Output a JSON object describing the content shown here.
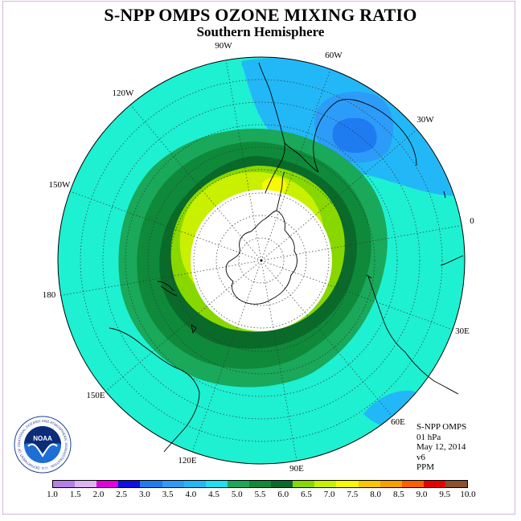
{
  "title": "S-NPP OMPS OZONE MIXING RATIO",
  "subtitle": "Southern Hemisphere",
  "longitude_labels": [
    "90W",
    "60W",
    "30W",
    "0",
    "30E",
    "60E",
    "90E",
    "120E",
    "150E",
    "180",
    "150W",
    "120W"
  ],
  "info": {
    "instrument": "S-NPP OMPS",
    "level": "01 hPa",
    "date": "May 12, 2014",
    "version": "v6",
    "units": "PPM"
  },
  "colorbar": {
    "labels": [
      "1.0",
      "1.5",
      "2.0",
      "2.5",
      "3.0",
      "3.5",
      "4.0",
      "4.5",
      "5.0",
      "5.5",
      "6.0",
      "6.5",
      "7.0",
      "7.5",
      "8.0",
      "8.5",
      "9.0",
      "9.5",
      "10.0"
    ],
    "colors": [
      "#b77fe6",
      "#dcb4f0",
      "#e000e0",
      "#1010e0",
      "#1e7cf0",
      "#2c9cf8",
      "#22b8f8",
      "#1ee0f0",
      "#1aa85a",
      "#0e8a3a",
      "#0a6a2a",
      "#88d800",
      "#c8f000",
      "#f8f800",
      "#f8c800",
      "#f8a000",
      "#f86000",
      "#e80000",
      "#8a5030"
    ]
  },
  "logo": {
    "text": "NOAA",
    "ring_text": "NATIONAL OCEANIC AND ATMOSPHERIC ADMINISTRATION · U.S. DEPARTMENT OF COMMERCE"
  }
}
